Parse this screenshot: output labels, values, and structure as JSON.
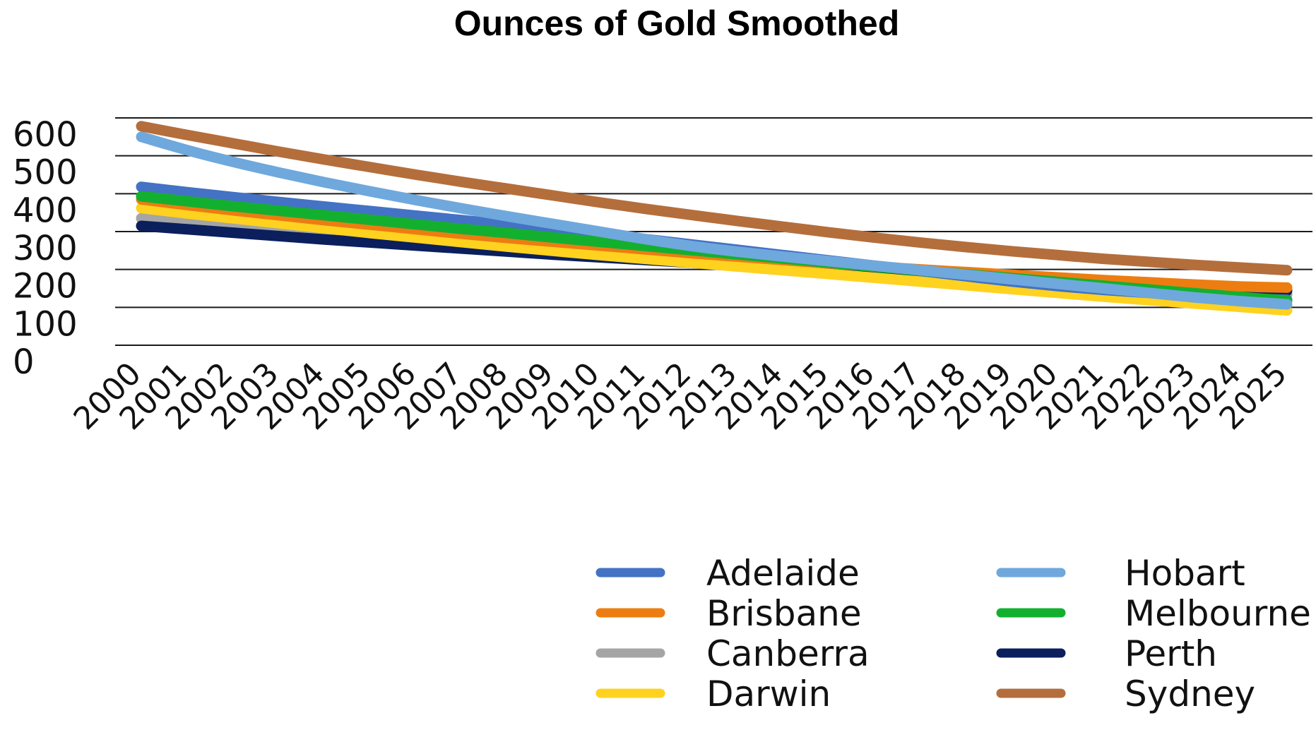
{
  "chart_data": {
    "type": "line",
    "title": "Ounces of Gold Smoothed",
    "xlabel": "",
    "ylabel": "",
    "x": [
      "2000",
      "2001",
      "2002",
      "2003",
      "2004",
      "2005",
      "2006",
      "2007",
      "2008",
      "2009",
      "2010",
      "2011",
      "2012",
      "2013",
      "2014",
      "2015",
      "2016",
      "2017",
      "2018",
      "2019",
      "2020",
      "2021",
      "2022",
      "2023",
      "2024",
      "2025"
    ],
    "ylim": [
      0,
      600
    ],
    "yticks": [
      "0",
      "100",
      "200",
      "300",
      "400",
      "500",
      "600"
    ],
    "grid": true,
    "legend_position": "bottom-right",
    "series": [
      {
        "name": "Adelaide",
        "color": "#4472C4",
        "values": [
          418,
          404,
          391,
          378,
          366,
          354,
          342,
          330,
          318,
          306,
          294,
          280,
          266,
          252,
          238,
          224,
          210,
          196,
          182,
          168,
          156,
          146,
          138,
          130,
          124,
          120
        ]
      },
      {
        "name": "Brisbane",
        "color": "#ED7D11",
        "values": [
          385,
          370,
          356,
          343,
          330,
          318,
          306,
          294,
          283,
          273,
          263,
          253,
          243,
          234,
          225,
          216,
          208,
          200,
          193,
          186,
          179,
          172,
          166,
          160,
          155,
          152
        ]
      },
      {
        "name": "Canberra",
        "color": "#A5A5A5",
        "values": [
          335,
          325,
          316,
          307,
          298,
          289,
          280,
          271,
          262,
          253,
          245,
          236,
          228,
          220,
          212,
          204,
          196,
          188,
          180,
          173,
          166,
          159,
          152,
          146,
          140,
          134
        ]
      },
      {
        "name": "Darwin",
        "color": "#FFD21F",
        "values": [
          362,
          348,
          335,
          322,
          309,
          296,
          284,
          272,
          260,
          249,
          238,
          228,
          218,
          208,
          198,
          188,
          178,
          168,
          158,
          148,
          138,
          128,
          119,
          110,
          101,
          92
        ]
      },
      {
        "name": "Hobart",
        "color": "#6FA8DC",
        "values": [
          550,
          515,
          484,
          456,
          430,
          406,
          383,
          361,
          340,
          320,
          300,
          280,
          262,
          247,
          234,
          222,
          210,
          198,
          186,
          174,
          162,
          150,
          138,
          126,
          116,
          108
        ]
      },
      {
        "name": "Melbourne",
        "color": "#13B030",
        "values": [
          393,
          380,
          367,
          355,
          343,
          331,
          319,
          307,
          296,
          284,
          273,
          262,
          251,
          240,
          229,
          218,
          207,
          197,
          187,
          177,
          167,
          157,
          147,
          137,
          127,
          118
        ]
      },
      {
        "name": "Perth",
        "color": "#0A1F5C",
        "values": [
          315,
          306,
          297,
          288,
          279,
          271,
          263,
          255,
          247,
          239,
          232,
          225,
          218,
          211,
          205,
          198,
          192,
          186,
          180,
          174,
          168,
          163,
          158,
          153,
          148,
          144
        ]
      },
      {
        "name": "Sydney",
        "color": "#B46E3C",
        "values": [
          578,
          555,
          533,
          511,
          490,
          470,
          450,
          431,
          413,
          395,
          377,
          360,
          344,
          328,
          313,
          298,
          284,
          271,
          259,
          248,
          238,
          228,
          220,
          212,
          205,
          198
        ]
      }
    ]
  }
}
